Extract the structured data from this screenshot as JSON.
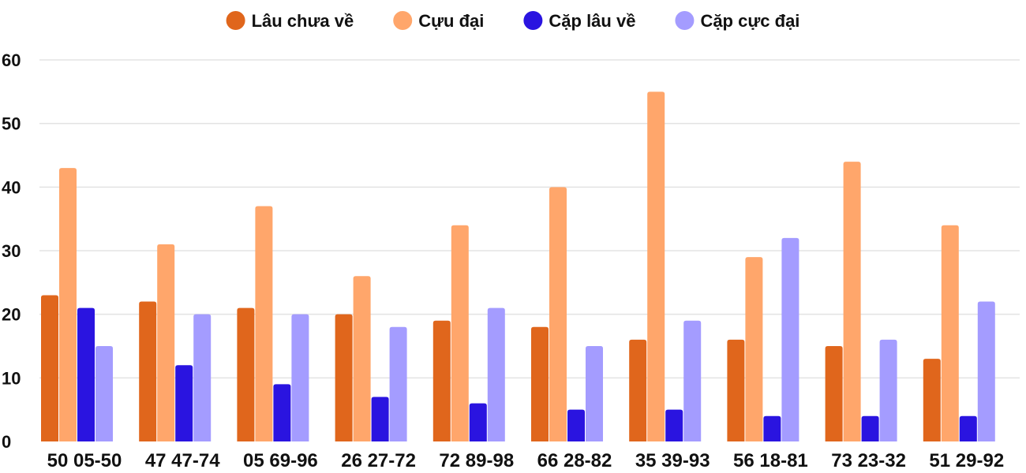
{
  "chart_data": {
    "type": "bar",
    "title": "",
    "xlabel": "",
    "ylabel": "",
    "ylim": [
      0,
      60
    ],
    "yticks": [
      0,
      10,
      20,
      30,
      40,
      50,
      60
    ],
    "grid": true,
    "legend_position": "top-center",
    "categories": [
      "50 05-50",
      "47 47-74",
      "05 69-96",
      "26 27-72",
      "72 89-98",
      "66 28-82",
      "35 39-93",
      "56 18-81",
      "73 23-32",
      "51 29-92"
    ],
    "series": [
      {
        "name": "Lâu chưa về",
        "color": "#e0661c",
        "values": [
          23,
          22,
          21,
          20,
          19,
          18,
          16,
          16,
          15,
          13
        ]
      },
      {
        "name": "Cựu đại",
        "color": "#ffa66b",
        "values": [
          43,
          31,
          37,
          26,
          34,
          40,
          55,
          29,
          44,
          34
        ]
      },
      {
        "name": "Cặp lâu về",
        "color": "#2a14e0",
        "values": [
          21,
          12,
          9,
          7,
          6,
          5,
          5,
          4,
          4,
          4
        ]
      },
      {
        "name": "Cặp cực đại",
        "color": "#a49cff",
        "values": [
          15,
          20,
          20,
          18,
          21,
          15,
          19,
          32,
          16,
          22
        ]
      }
    ]
  }
}
